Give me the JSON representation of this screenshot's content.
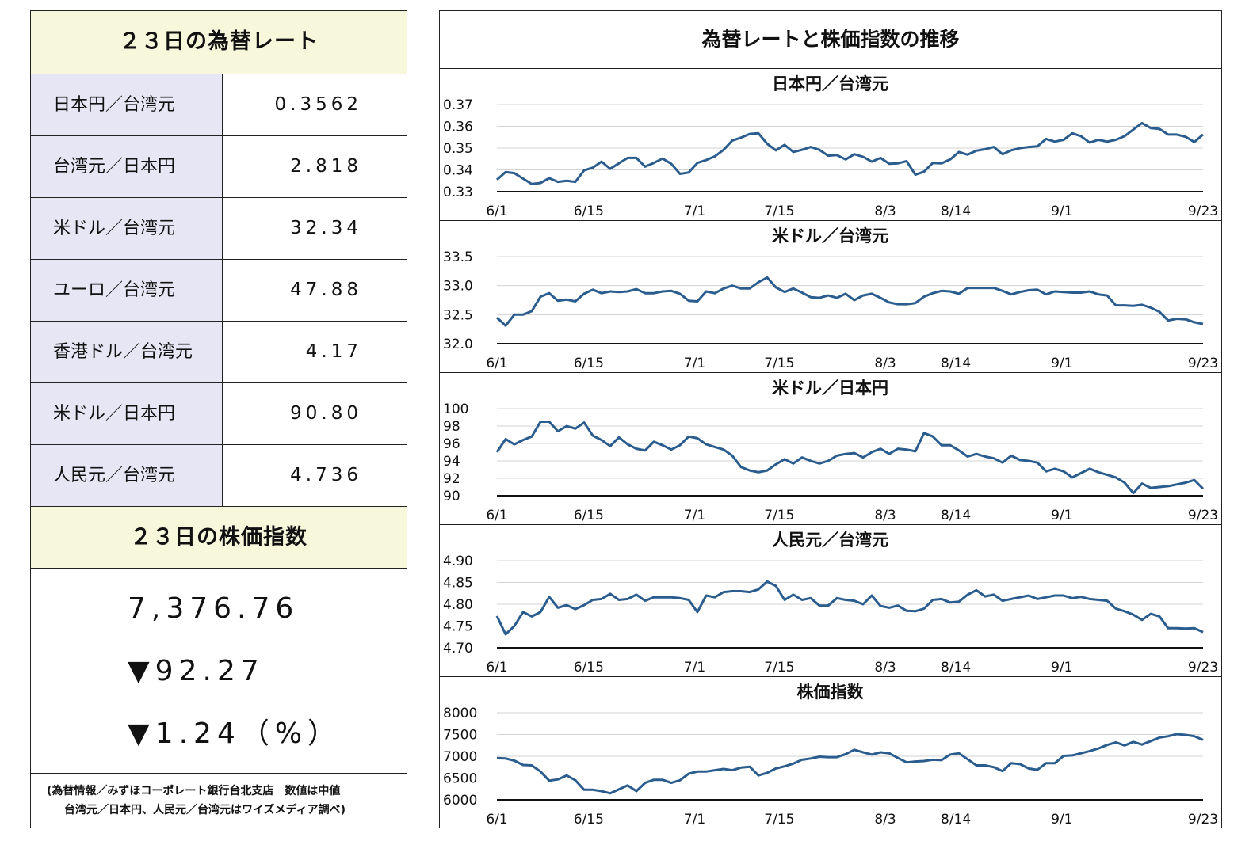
{
  "left": {
    "rates_title": "２３日の為替レート",
    "rates": [
      {
        "label": "日本円／台湾元",
        "value": "0.3562"
      },
      {
        "label": "台湾元／日本円",
        "value": "2.818"
      },
      {
        "label": "米ドル／台湾元",
        "value": "32.34"
      },
      {
        "label": "ユーロ／台湾元",
        "value": "47.88"
      },
      {
        "label": "香港ドル／台湾元",
        "value": "4.17"
      },
      {
        "label": "米ドル／日本円",
        "value": "90.80"
      },
      {
        "label": "人民元／台湾元",
        "value": "4.736"
      }
    ],
    "stock_title": "２３日の株価指数",
    "stock_value": "7,376.76",
    "stock_change": "▼92.27",
    "stock_change_pct": "▼1.24（%）",
    "source_line1": "(為替情報／みずほコーポレート銀行台北支店　数値は中値",
    "source_line2": "台湾元／日本円、人民元／台湾元はワイズメディア調べ)"
  },
  "right": {
    "title": "為替レートと株価指数の推移"
  },
  "chart_data": [
    {
      "type": "line",
      "title": "日本円／台湾元",
      "color": "#2a5d8e",
      "x_ticks": [
        "6/1",
        "6/15",
        "7/1",
        "7/15",
        "8/3",
        "8/14",
        "9/1",
        "9/23"
      ],
      "y_ticks": [
        "0.33",
        "0.34",
        "0.35",
        "0.36",
        "0.37"
      ],
      "ylim": [
        0.33,
        0.37
      ],
      "values": [
        0.3355,
        0.339,
        0.3385,
        0.336,
        0.3335,
        0.334,
        0.3362,
        0.3345,
        0.335,
        0.3345,
        0.3398,
        0.341,
        0.3438,
        0.3405,
        0.343,
        0.3455,
        0.3455,
        0.3415,
        0.3432,
        0.3452,
        0.3428,
        0.3382,
        0.3388,
        0.3432,
        0.3445,
        0.3462,
        0.3492,
        0.3535,
        0.3548,
        0.3565,
        0.3568,
        0.352,
        0.349,
        0.3515,
        0.3482,
        0.3492,
        0.3505,
        0.3492,
        0.3465,
        0.3468,
        0.3448,
        0.3472,
        0.346,
        0.3438,
        0.3455,
        0.3428,
        0.343,
        0.344,
        0.3378,
        0.3392,
        0.3432,
        0.343,
        0.3448,
        0.3482,
        0.347,
        0.3488,
        0.3495,
        0.3505,
        0.3472,
        0.349,
        0.35,
        0.3505,
        0.3508,
        0.3542,
        0.353,
        0.3538,
        0.3568,
        0.3555,
        0.3525,
        0.3538,
        0.353,
        0.3538,
        0.3555,
        0.3585,
        0.3615,
        0.3592,
        0.3588,
        0.3562,
        0.3562,
        0.3552,
        0.3528,
        0.3562
      ]
    },
    {
      "type": "line",
      "title": "米ドル／台湾元",
      "color": "#2a5d8e",
      "x_ticks": [
        "6/1",
        "6/15",
        "7/1",
        "7/15",
        "8/3",
        "8/14",
        "9/1",
        "9/23"
      ],
      "y_ticks": [
        "32.0",
        "32.5",
        "33.0",
        "33.5"
      ],
      "ylim": [
        32.0,
        33.5
      ],
      "values": [
        32.45,
        32.31,
        32.5,
        32.5,
        32.56,
        32.81,
        32.87,
        32.74,
        32.76,
        32.73,
        32.86,
        32.93,
        32.87,
        32.9,
        32.89,
        32.9,
        32.94,
        32.87,
        32.87,
        32.9,
        32.91,
        32.86,
        32.74,
        32.73,
        32.9,
        32.87,
        32.95,
        33.0,
        32.95,
        32.95,
        33.06,
        33.14,
        32.97,
        32.89,
        32.95,
        32.88,
        32.8,
        32.79,
        32.83,
        32.79,
        32.86,
        32.75,
        32.83,
        32.86,
        32.79,
        32.71,
        32.68,
        32.68,
        32.7,
        32.81,
        32.87,
        32.91,
        32.9,
        32.86,
        32.96,
        32.96,
        32.96,
        32.96,
        32.91,
        32.85,
        32.89,
        32.92,
        32.93,
        32.85,
        32.9,
        32.89,
        32.88,
        32.88,
        32.9,
        32.85,
        32.83,
        32.66,
        32.66,
        32.65,
        32.67,
        32.62,
        32.55,
        32.4,
        32.43,
        32.42,
        32.37,
        32.34
      ]
    },
    {
      "type": "line",
      "title": "米ドル／日本円",
      "color": "#2a5d8e",
      "x_ticks": [
        "6/1",
        "6/15",
        "7/1",
        "7/15",
        "8/3",
        "8/14",
        "9/1",
        "9/23"
      ],
      "y_ticks": [
        "90",
        "92",
        "94",
        "96",
        "98",
        "100"
      ],
      "ylim": [
        90,
        100
      ],
      "values": [
        95.0,
        96.5,
        95.9,
        96.4,
        96.8,
        98.5,
        98.5,
        97.4,
        98.0,
        97.7,
        98.4,
        96.9,
        96.4,
        95.7,
        96.7,
        95.9,
        95.4,
        95.2,
        96.2,
        95.8,
        95.3,
        95.8,
        96.8,
        96.6,
        95.9,
        95.6,
        95.3,
        94.6,
        93.3,
        92.9,
        92.7,
        92.9,
        93.6,
        94.2,
        93.7,
        94.4,
        94.0,
        93.7,
        94.0,
        94.6,
        94.8,
        94.9,
        94.4,
        95.0,
        95.4,
        94.8,
        95.4,
        95.3,
        95.1,
        97.2,
        96.8,
        95.8,
        95.8,
        95.2,
        94.5,
        94.8,
        94.5,
        94.3,
        93.8,
        94.6,
        94.1,
        94.0,
        93.8,
        92.8,
        93.1,
        92.8,
        92.1,
        92.6,
        93.1,
        92.7,
        92.4,
        92.1,
        91.5,
        90.3,
        91.4,
        90.9,
        91.0,
        91.1,
        91.3,
        91.5,
        91.8,
        90.8
      ]
    },
    {
      "type": "line",
      "title": "人民元／台湾元",
      "color": "#2a5d8e",
      "x_ticks": [
        "6/1",
        "6/15",
        "7/1",
        "7/15",
        "8/3",
        "8/14",
        "9/1",
        "9/23"
      ],
      "y_ticks": [
        "4.70",
        "4.75",
        "4.80",
        "4.85",
        "4.90"
      ],
      "ylim": [
        4.7,
        4.9
      ],
      "values": [
        4.773,
        4.731,
        4.75,
        4.782,
        4.772,
        4.782,
        4.817,
        4.792,
        4.798,
        4.789,
        4.798,
        4.81,
        4.812,
        4.824,
        4.81,
        4.812,
        4.822,
        4.808,
        4.816,
        4.816,
        4.816,
        4.814,
        4.81,
        4.782,
        4.82,
        4.816,
        4.828,
        4.83,
        4.83,
        4.828,
        4.834,
        4.852,
        4.842,
        4.81,
        4.822,
        4.81,
        4.814,
        4.797,
        4.797,
        4.814,
        4.81,
        4.808,
        4.8,
        4.82,
        4.796,
        4.792,
        4.797,
        4.785,
        4.784,
        4.79,
        4.81,
        4.812,
        4.804,
        4.806,
        4.822,
        4.832,
        4.818,
        4.822,
        4.808,
        4.812,
        4.816,
        4.82,
        4.812,
        4.816,
        4.82,
        4.82,
        4.814,
        4.817,
        4.812,
        4.81,
        4.808,
        4.79,
        4.784,
        4.776,
        4.764,
        4.778,
        4.772,
        4.745,
        4.745,
        4.744,
        4.745,
        4.736
      ]
    },
    {
      "type": "line",
      "title": "株価指数",
      "color": "#2a5d8e",
      "x_ticks": [
        "6/1",
        "6/15",
        "7/1",
        "7/15",
        "8/3",
        "8/14",
        "9/1",
        "9/23"
      ],
      "y_ticks": [
        "6000",
        "6500",
        "7000",
        "7500",
        "8000"
      ],
      "ylim": [
        6000,
        8000
      ],
      "values": [
        6960,
        6950,
        6900,
        6800,
        6790,
        6650,
        6440,
        6470,
        6560,
        6450,
        6230,
        6230,
        6200,
        6150,
        6240,
        6330,
        6200,
        6390,
        6460,
        6460,
        6390,
        6450,
        6600,
        6650,
        6650,
        6680,
        6710,
        6680,
        6740,
        6760,
        6560,
        6620,
        6720,
        6770,
        6830,
        6920,
        6950,
        6990,
        6980,
        6980,
        7050,
        7150,
        7090,
        7040,
        7090,
        7070,
        6960,
        6860,
        6880,
        6890,
        6920,
        6910,
        7040,
        7070,
        6930,
        6790,
        6790,
        6750,
        6660,
        6840,
        6820,
        6720,
        6690,
        6840,
        6840,
        7010,
        7020,
        7070,
        7120,
        7180,
        7260,
        7320,
        7250,
        7330,
        7270,
        7350,
        7430,
        7460,
        7510,
        7490,
        7460,
        7377
      ]
    }
  ]
}
